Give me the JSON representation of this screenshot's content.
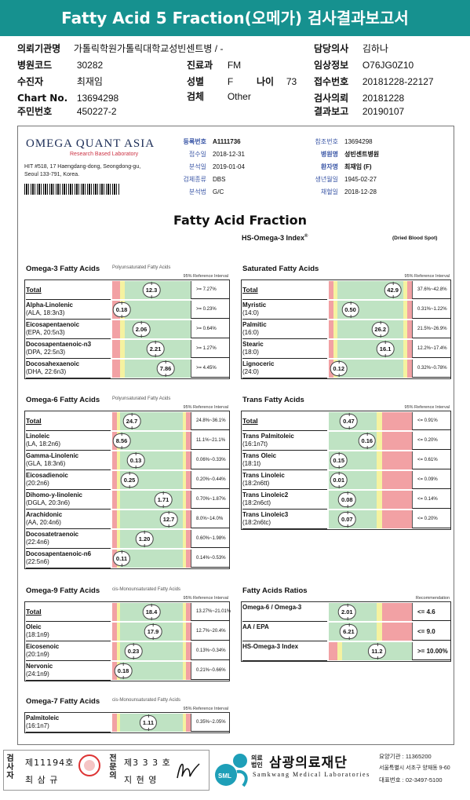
{
  "header": {
    "title": "Fatty Acid 5 Fraction(오메가) 검사결과보고서",
    "fields": {
      "institution": {
        "label": "의뢰기관명",
        "value": "가톨릭학원가톨릭대학교성빈센트병 / -"
      },
      "doctor": {
        "label": "담당의사",
        "value": "김하나"
      },
      "hospital_code": {
        "label": "병원코드",
        "value": "30282"
      },
      "department": {
        "label": "진료과",
        "value": "FM"
      },
      "clinical_info": {
        "label": "임상정보",
        "value": "O76JG0Z10"
      },
      "patient": {
        "label": "수진자",
        "value": "최재임"
      },
      "sex": {
        "label": "성별",
        "value": "F"
      },
      "age": {
        "label": "나이",
        "value": "73"
      },
      "receipt_no": {
        "label": "접수번호",
        "value": "20181228-22127"
      },
      "chart_no": {
        "label": "Chart No.",
        "value": "13694298"
      },
      "specimen": {
        "label": "검체",
        "value": "Other"
      },
      "request_date": {
        "label": "검사의뢰",
        "value": "20181228"
      },
      "resident_no": {
        "label": "주민번호",
        "value": "450227-2"
      },
      "report_date": {
        "label": "결과보고",
        "value": "20190107"
      }
    }
  },
  "lab": {
    "name": "OMEGA QUANT ASIA",
    "tagline": "Research Based Laboratory",
    "address1": "HIT #518, 17 Haengdang-dong, Seongdong-gu,",
    "address2": "Seoul 133-791, Korea."
  },
  "info_left": [
    {
      "label": "등록번호",
      "value": "A1111736",
      "bold": true
    },
    {
      "label": "접수일",
      "value": "2018-12-31"
    },
    {
      "label": "분석일",
      "value": "2019-01-04"
    },
    {
      "label": "검체종류",
      "value": "DBS"
    },
    {
      "label": "분석법",
      "value": "G/C"
    }
  ],
  "info_right": [
    {
      "label": "참조번호",
      "value": "13694298"
    },
    {
      "label": "병원명",
      "value": "성빈센트병원",
      "bold": true
    },
    {
      "label": "환자명",
      "value": "최재임 (F)",
      "bold": true
    },
    {
      "label": "생년월일",
      "value": "1945-02-27"
    },
    {
      "label": "채혈일",
      "value": "2018-12-28"
    }
  ],
  "report": {
    "title": "Fatty Acid Fraction",
    "index_title": "HS-Omega-3 Index",
    "index_sup": "®",
    "specimen_note": "(Dried Blood Spot)",
    "ref_interval_label": "95% Reference Interval"
  },
  "panels": {
    "omega3": {
      "title": "Omega-3 Fatty Acids",
      "subtitle": "Polyunsaturated Fatty Acids",
      "rows": [
        {
          "name": "Total",
          "sub": "",
          "value": "12.3",
          "pos": 0.5,
          "ref": ">= 7.27%",
          "total": true
        },
        {
          "name": "Alpha-Linolenic",
          "sub": "(ALA, 18:3n3)",
          "value": "0.18",
          "pos": 0.12,
          "ref": ">= 0.23%"
        },
        {
          "name": "Eicosapentaenoic",
          "sub": "(EPA, 20:5n3)",
          "value": "2.06",
          "pos": 0.37,
          "ref": ">= 0.64%"
        },
        {
          "name": "Docosapentaenoic-n3",
          "sub": "(DPA, 22:5n3)",
          "value": "2.21",
          "pos": 0.55,
          "ref": ">= 1.27%"
        },
        {
          "name": "Docosahexaenoic",
          "sub": "(DHA, 22:6n3)",
          "value": "7.86",
          "pos": 0.68,
          "ref": ">= 4.45%"
        }
      ]
    },
    "saturated": {
      "title": "Saturated Fatty Acids",
      "subtitle": "",
      "rows": [
        {
          "name": "Total",
          "sub": "",
          "value": "42.9",
          "pos": 0.77,
          "ref": "37.6%~42.8%",
          "total": true
        },
        {
          "name": "Myristic",
          "sub": "(14:0)",
          "value": "0.50",
          "pos": 0.26,
          "ref": "0.31%~1.22%"
        },
        {
          "name": "Palmitic",
          "sub": "(16:0)",
          "value": "26.2",
          "pos": 0.62,
          "ref": "21.5%~26.9%"
        },
        {
          "name": "Stearic",
          "sub": "(18:0)",
          "value": "16.1",
          "pos": 0.68,
          "ref": "12.2%~17.4%"
        },
        {
          "name": "Lignoceric",
          "sub": "(24:0)",
          "value": "0.12",
          "pos": 0.12,
          "ref": "0.32%~0.78%"
        }
      ]
    },
    "omega6": {
      "title": "Omega-6 Fatty Acids",
      "subtitle": "Polyunsaturated Fatty Acids",
      "rows": [
        {
          "name": "Total",
          "sub": "",
          "value": "24.7",
          "pos": 0.25,
          "ref": "24.8%~36.1%",
          "total": true
        },
        {
          "name": "Linoleic",
          "sub": "(LA, 18:2n6)",
          "value": "8.56",
          "pos": 0.12,
          "ref": "11.1%~21.1%"
        },
        {
          "name": "Gamma-Linolenic",
          "sub": "(GLA, 18:3n6)",
          "value": "0.13",
          "pos": 0.3,
          "ref": "0.06%~0.33%"
        },
        {
          "name": "Eicosadienoic",
          "sub": "(20:2n6)",
          "value": "0.25",
          "pos": 0.22,
          "ref": "0.20%~0.44%"
        },
        {
          "name": "Dihomo-y-linolenic",
          "sub": "(DGLA, 20:3n6)",
          "value": "1.71",
          "pos": 0.65,
          "ref": "0.70%~1.87%"
        },
        {
          "name": "Arachidonic",
          "sub": "(AA, 20:4n6)",
          "value": "12.7",
          "pos": 0.72,
          "ref": "8.0%~14.0%"
        },
        {
          "name": "Docosatetraenoic",
          "sub": "(22:4n6)",
          "value": "1.20",
          "pos": 0.41,
          "ref": "0.60%~1.98%"
        },
        {
          "name": "Docosapentaenoic-n6",
          "sub": "(22:5n6)",
          "value": "0.11",
          "pos": 0.12,
          "ref": "0.14%~0.53%"
        }
      ]
    },
    "trans": {
      "title": "Trans Fatty Acids",
      "subtitle": "",
      "rows": [
        {
          "name": "Total",
          "sub": "",
          "value": "0.47",
          "pos": 0.24,
          "ref": "<= 0.91%",
          "total": true
        },
        {
          "name": "Trans Palmitoleic",
          "sub": "(16:1n7t)",
          "value": "0.16",
          "pos": 0.46,
          "ref": "<= 0.20%"
        },
        {
          "name": "Trans Oleic",
          "sub": "(18:1t)",
          "value": "0.15",
          "pos": 0.12,
          "ref": "<= 0.61%"
        },
        {
          "name": "Trans Linoleic",
          "sub": "(18:2n6tt)",
          "value": "0.01",
          "pos": 0.12,
          "ref": "<= 0.09%"
        },
        {
          "name": "Trans Linoleic2",
          "sub": "(18:2n6ct)",
          "value": "0.08",
          "pos": 0.22,
          "ref": "<= 0.14%"
        },
        {
          "name": "Trans Linoleic3",
          "sub": "(18:2n6tc)",
          "value": "0.07",
          "pos": 0.22,
          "ref": "<= 0.20%"
        }
      ]
    },
    "omega9": {
      "title": "Omega-9 Fatty Acids",
      "subtitle": "cis-Monounsaturated Fatty Acids",
      "rows": [
        {
          "name": "Total",
          "sub": "",
          "value": "18.4",
          "pos": 0.5,
          "ref": "13.27%~21.01%",
          "total": true
        },
        {
          "name": "Oleic",
          "sub": "(18:1n9)",
          "value": "17.9",
          "pos": 0.52,
          "ref": "12.7%~20.4%"
        },
        {
          "name": "Eicosenoic",
          "sub": "(20:1n9)",
          "value": "0.23",
          "pos": 0.27,
          "ref": "0.13%~0.34%"
        },
        {
          "name": "Nervonic",
          "sub": "(24:1n9)",
          "value": "0.18",
          "pos": 0.14,
          "ref": "0.21%~0.66%"
        }
      ]
    },
    "omega7": {
      "title": "Omega-7 Fatty Acids",
      "subtitle": "cis-Monounsaturated Fatty Acids",
      "rows": [
        {
          "name": "Palmitoleic",
          "sub": "(16:1n7)",
          "value": "1.11",
          "pos": 0.46,
          "ref": "0.35%~2.05%"
        }
      ]
    },
    "ratios": {
      "title": "Fatty Acids Ratios",
      "rec_label": "Recommendation",
      "rows": [
        {
          "name": "Omega-6 / Omega-3",
          "value": "2.01",
          "pos": 0.22,
          "rec": "<= 4.6"
        },
        {
          "name": "AA / EPA",
          "value": "6.21",
          "pos": 0.24,
          "rec": "<= 9.0"
        },
        {
          "name": "HS-Omega-3 Index",
          "value": "11.2",
          "pos": 0.58,
          "rec": ">= 10.00%"
        }
      ]
    }
  },
  "footer": {
    "inspector_label": "검사자",
    "inspector_no": "제11194호",
    "inspector_name": "최 삼 규",
    "reviewer_label": "전문의",
    "reviewer_no": "제3 3 3 호",
    "reviewer_name": "지 현 영",
    "org_prefix": "의료법인",
    "org_name": "삼광의료재단",
    "org_en": "Samkwang Medical Laboratories",
    "org_code": "요양기관 : 11365200",
    "org_addr": "서울특별시 서초구 양재동 9-60",
    "org_tel": "대표번호 : 02-3497-5100",
    "sml": "SML",
    "colors": {
      "teal": "#16918f",
      "green": "#bfe3c3",
      "red": "#f2a1a4",
      "yellow": "#f5f2a0"
    }
  }
}
